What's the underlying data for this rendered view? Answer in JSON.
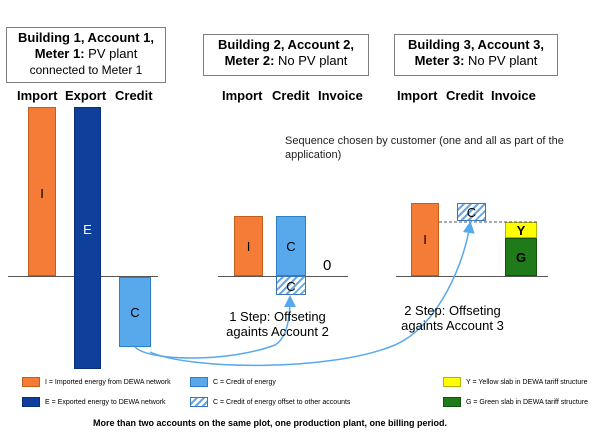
{
  "boxes": {
    "b1_line1": "Building 1, Account 1,",
    "b1_line2_bold": "Meter 1:",
    "b1_line2_rest": " PV plant",
    "b1_line3": "connected to Meter 1",
    "b2_line1": "Building 2, Account 2,",
    "b2_line2_bold": "Meter 2:",
    "b2_line2_rest": " No PV plant",
    "b3_line1": "Building 3, Account 3,",
    "b3_line2_bold": "Meter 3:",
    "b3_line2_rest": " No PV plant"
  },
  "column_labels": {
    "import1": "Import",
    "export1": "Export",
    "credit1": "Credit",
    "import2": "Import",
    "credit2": "Credit",
    "invoice2": "Invoice",
    "import3": "Import",
    "credit3": "Credit",
    "invoice3": "Invoice"
  },
  "bar_letters": {
    "i1": "I",
    "e1": "E",
    "c1": "C",
    "i2": "I",
    "c2": "C",
    "c2_offset": "C",
    "invoice2_value": "0",
    "i3": "I",
    "c3_offset": "C",
    "y3": "Y",
    "g3": "G"
  },
  "note": "Sequence chosen by customer (one and all as part of the application)",
  "step1": "1 Step: Offseting againts Account 2",
  "step2": "2 Step: Offseting againts Account 3",
  "legend": {
    "i": "I = Imported energy from DEWA network",
    "e": "E = Exported energy to DEWA network",
    "c": "C = Credit of energy",
    "c_offset": "C = Credit of energy offset to other accounts",
    "y": "Y = Yellow slab in DEWA tariff structure",
    "g": "G = Green slab in DEWA tariff structure"
  },
  "footer": "More than two accounts on the same plot, one production plant, one billing period.",
  "colors": {
    "import": "#f47c36",
    "export": "#0e3f9b",
    "credit": "#58a9ec",
    "yellow_slab": "#ffff00",
    "green_slab": "#1f7a19"
  }
}
